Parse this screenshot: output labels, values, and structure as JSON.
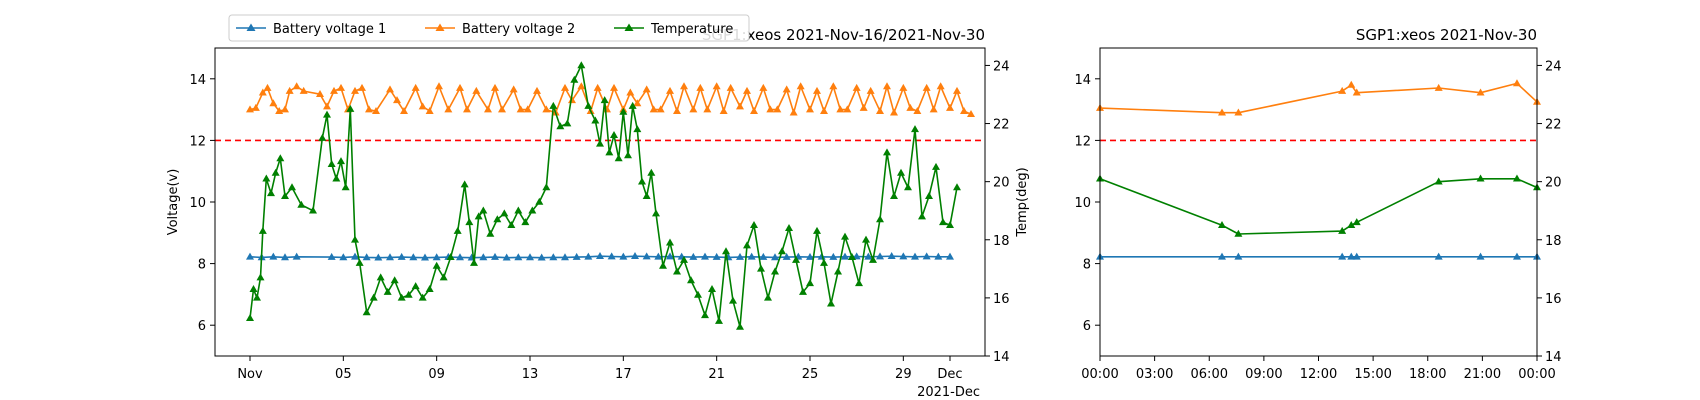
{
  "colors": {
    "battery1": "#1f77b4",
    "battery2": "#ff7f0e",
    "temperature": "#008000",
    "threshold": "#ff0000"
  },
  "chart_data": [
    {
      "type": "line",
      "title": "SGP1:xeos 2021-Nov-16/2021-Nov-30",
      "ylabel": "Voltage(v)",
      "y2label": "Temp(deg)",
      "xlim_days": [
        -1.5,
        31.5
      ],
      "ylim": [
        5,
        15
      ],
      "y2lim": [
        14,
        24.6
      ],
      "x_ticks": [
        {
          "day": 0,
          "label": "Nov"
        },
        {
          "day": 4,
          "label": "05"
        },
        {
          "day": 8,
          "label": "09"
        },
        {
          "day": 12,
          "label": "13"
        },
        {
          "day": 16,
          "label": "17"
        },
        {
          "day": 20,
          "label": "21"
        },
        {
          "day": 24,
          "label": "25"
        },
        {
          "day": 28,
          "label": "29"
        },
        {
          "day": 30,
          "label": "Dec"
        }
      ],
      "x_offset_label": "2021-Dec",
      "y_ticks": [
        6,
        8,
        10,
        12,
        14
      ],
      "y2_ticks": [
        14,
        16,
        18,
        20,
        22,
        24
      ],
      "threshold": 12,
      "legend": {
        "position": "top-left",
        "entries": [
          "Battery voltage 1",
          "Battery voltage 2",
          "Temperature"
        ]
      },
      "series": [
        {
          "name": "Battery voltage 1",
          "axis": "left",
          "x": [
            0,
            0.5,
            1,
            1.5,
            2,
            3.5,
            4,
            4.5,
            5,
            5.5,
            6,
            6.5,
            7,
            7.5,
            8,
            8.5,
            9,
            9.5,
            10,
            10.5,
            11,
            11.5,
            12,
            12.5,
            13,
            13.5,
            14,
            14.5,
            15,
            15.5,
            16,
            16.5,
            17,
            17.5,
            18,
            18.5,
            19,
            19.5,
            20,
            20.5,
            21,
            21.5,
            22,
            22.5,
            23,
            23.5,
            24,
            24.5,
            25,
            25.5,
            26,
            26.5,
            27,
            27.5,
            28,
            28.5,
            29,
            29.5,
            30
          ],
          "values": [
            8.22,
            8.2,
            8.22,
            8.2,
            8.22,
            8.21,
            8.2,
            8.22,
            8.2,
            8.19,
            8.2,
            8.21,
            8.2,
            8.19,
            8.2,
            8.21,
            8.2,
            8.19,
            8.2,
            8.21,
            8.19,
            8.2,
            8.2,
            8.19,
            8.2,
            8.2,
            8.21,
            8.22,
            8.24,
            8.23,
            8.22,
            8.24,
            8.23,
            8.22,
            8.23,
            8.22,
            8.21,
            8.22,
            8.21,
            8.2,
            8.21,
            8.22,
            8.21,
            8.2,
            8.21,
            8.22,
            8.21,
            8.22,
            8.21,
            8.22,
            8.23,
            8.22,
            8.23,
            8.24,
            8.23,
            8.22,
            8.23,
            8.22,
            8.22
          ]
        },
        {
          "name": "Battery voltage 2",
          "axis": "left",
          "x": [
            0,
            0.25,
            0.55,
            0.75,
            1.0,
            1.25,
            1.5,
            1.7,
            2.0,
            2.3,
            3.0,
            3.3,
            3.6,
            3.9,
            4.2,
            4.5,
            4.8,
            5.1,
            5.4,
            6.0,
            6.3,
            6.6,
            7.1,
            7.4,
            7.7,
            8.1,
            8.5,
            9.0,
            9.3,
            9.7,
            10.2,
            10.5,
            10.8,
            11.3,
            11.6,
            11.9,
            12.3,
            12.7,
            13.1,
            13.5,
            13.8,
            14.2,
            14.6,
            14.9,
            15.3,
            15.6,
            16.0,
            16.3,
            16.6,
            17.0,
            17.3,
            17.6,
            18.0,
            18.3,
            18.6,
            19.0,
            19.3,
            19.6,
            20.0,
            20.3,
            20.6,
            21.0,
            21.3,
            21.6,
            22.0,
            22.3,
            22.6,
            23.0,
            23.3,
            23.6,
            24.0,
            24.3,
            24.6,
            25.0,
            25.3,
            25.6,
            26.0,
            26.3,
            26.6,
            27.0,
            27.3,
            27.6,
            28.0,
            28.3,
            28.6,
            29.0,
            29.3,
            29.6,
            30.0,
            30.3,
            30.6,
            30.9
          ],
          "values": [
            13.0,
            13.05,
            13.55,
            13.7,
            13.2,
            12.95,
            13.0,
            13.6,
            13.75,
            13.6,
            13.5,
            13.1,
            13.6,
            13.7,
            13.0,
            13.6,
            13.7,
            13.0,
            12.95,
            13.65,
            13.3,
            12.95,
            13.7,
            13.1,
            12.95,
            13.75,
            13.0,
            13.7,
            13.0,
            13.6,
            13.0,
            13.7,
            13.0,
            13.65,
            13.0,
            13.0,
            13.6,
            13.0,
            12.9,
            13.7,
            13.3,
            13.75,
            12.95,
            13.7,
            13.0,
            13.7,
            13.0,
            13.55,
            13.2,
            13.65,
            13.0,
            13.0,
            13.6,
            12.95,
            13.75,
            13.0,
            13.7,
            13.0,
            13.75,
            12.95,
            13.7,
            13.1,
            13.6,
            12.95,
            13.7,
            13.0,
            13.0,
            13.65,
            12.9,
            13.75,
            13.0,
            13.6,
            12.95,
            13.75,
            13.0,
            13.0,
            13.7,
            13.05,
            13.6,
            12.95,
            13.75,
            12.9,
            13.7,
            13.05,
            12.95,
            13.7,
            13.0,
            13.75,
            13.05,
            13.6,
            12.95,
            12.85
          ]
        },
        {
          "name": "Temperature",
          "axis": "right",
          "x": [
            0,
            0.15,
            0.3,
            0.45,
            0.55,
            0.7,
            0.9,
            1.1,
            1.3,
            1.5,
            1.8,
            2.2,
            2.7,
            3.1,
            3.3,
            3.5,
            3.7,
            3.9,
            4.1,
            4.3,
            4.5,
            4.7,
            5.0,
            5.3,
            5.6,
            5.9,
            6.2,
            6.5,
            6.8,
            7.1,
            7.4,
            7.7,
            8.0,
            8.3,
            8.6,
            8.9,
            9.2,
            9.4,
            9.6,
            9.8,
            10.0,
            10.3,
            10.6,
            10.9,
            11.2,
            11.5,
            11.8,
            12.1,
            12.4,
            12.7,
            13.0,
            13.3,
            13.6,
            13.9,
            14.2,
            14.5,
            14.8,
            15.0,
            15.2,
            15.4,
            15.6,
            15.8,
            16.0,
            16.2,
            16.4,
            16.6,
            16.8,
            17.0,
            17.2,
            17.4,
            17.7,
            18.0,
            18.3,
            18.6,
            18.9,
            19.2,
            19.5,
            19.8,
            20.1,
            20.4,
            20.7,
            21.0,
            21.3,
            21.6,
            21.9,
            22.2,
            22.5,
            22.8,
            23.1,
            23.4,
            23.7,
            24.0,
            24.3,
            24.6,
            24.9,
            25.2,
            25.5,
            25.8,
            26.1,
            26.4,
            26.7,
            27.0,
            27.3,
            27.6,
            27.9,
            28.2,
            28.5,
            28.8,
            29.1,
            29.4,
            29.7,
            30.0,
            30.3
          ],
          "values": [
            15.3,
            16.3,
            16.0,
            16.7,
            18.3,
            20.1,
            19.6,
            20.3,
            20.8,
            19.5,
            19.8,
            19.2,
            19.0,
            21.5,
            22.3,
            20.6,
            20.1,
            20.7,
            19.8,
            22.5,
            18.0,
            17.2,
            15.5,
            16.0,
            16.7,
            16.2,
            16.6,
            16.0,
            16.1,
            16.4,
            16.0,
            16.3,
            17.1,
            16.7,
            17.4,
            18.3,
            19.9,
            18.6,
            17.2,
            18.8,
            19.0,
            18.2,
            18.7,
            18.9,
            18.5,
            19.0,
            18.6,
            19.0,
            19.3,
            19.8,
            22.6,
            21.9,
            22.0,
            23.5,
            24.0,
            22.6,
            22.1,
            21.3,
            22.8,
            21.0,
            21.6,
            20.8,
            22.4,
            20.9,
            22.6,
            21.8,
            20.0,
            19.5,
            20.3,
            18.9,
            17.1,
            17.9,
            16.9,
            17.3,
            16.6,
            16.1,
            15.4,
            16.3,
            15.2,
            17.6,
            15.9,
            15.0,
            17.8,
            18.5,
            17.0,
            16.0,
            16.9,
            17.6,
            18.4,
            17.3,
            16.2,
            16.5,
            18.3,
            17.2,
            15.8,
            16.9,
            18.1,
            17.4,
            16.5,
            18.0,
            17.3,
            18.7,
            21.0,
            19.5,
            20.3,
            19.8,
            21.8,
            18.8,
            19.5,
            20.5,
            18.6,
            18.5,
            19.8
          ]
        }
      ]
    },
    {
      "type": "line",
      "title": "SGP1:xeos 2021-Nov-30",
      "xlim_hours": [
        0,
        24
      ],
      "ylim": [
        5,
        15
      ],
      "y2lim": [
        14,
        24.6
      ],
      "x_ticks": [
        {
          "hour": 0,
          "label": "00:00"
        },
        {
          "hour": 3,
          "label": "03:00"
        },
        {
          "hour": 6,
          "label": "06:00"
        },
        {
          "hour": 9,
          "label": "09:00"
        },
        {
          "hour": 12,
          "label": "12:00"
        },
        {
          "hour": 15,
          "label": "15:00"
        },
        {
          "hour": 18,
          "label": "18:00"
        },
        {
          "hour": 21,
          "label": "21:00"
        },
        {
          "hour": 24,
          "label": "00:00"
        }
      ],
      "y_ticks": [
        6,
        8,
        10,
        12,
        14
      ],
      "y2_ticks": [
        14,
        16,
        18,
        20,
        22,
        24
      ],
      "threshold": 12,
      "series": [
        {
          "name": "Battery voltage 1",
          "axis": "left",
          "x": [
            0,
            6.7,
            7.6,
            13.3,
            13.8,
            14.1,
            18.6,
            20.9,
            22.9,
            24
          ],
          "values": [
            8.22,
            8.22,
            8.22,
            8.22,
            8.22,
            8.22,
            8.22,
            8.22,
            8.22,
            8.22
          ]
        },
        {
          "name": "Battery voltage 2",
          "axis": "left",
          "x": [
            0,
            6.7,
            7.6,
            13.3,
            13.8,
            14.1,
            18.6,
            20.9,
            22.9,
            24
          ],
          "values": [
            13.05,
            12.9,
            12.9,
            13.6,
            13.8,
            13.55,
            13.7,
            13.55,
            13.85,
            13.25
          ]
        },
        {
          "name": "Temperature",
          "axis": "right",
          "x": [
            0,
            6.7,
            7.6,
            13.3,
            13.8,
            14.1,
            18.6,
            20.9,
            22.9,
            24
          ],
          "values": [
            20.1,
            18.5,
            18.2,
            18.3,
            18.5,
            18.6,
            20.0,
            20.1,
            20.1,
            19.8
          ]
        }
      ]
    }
  ]
}
